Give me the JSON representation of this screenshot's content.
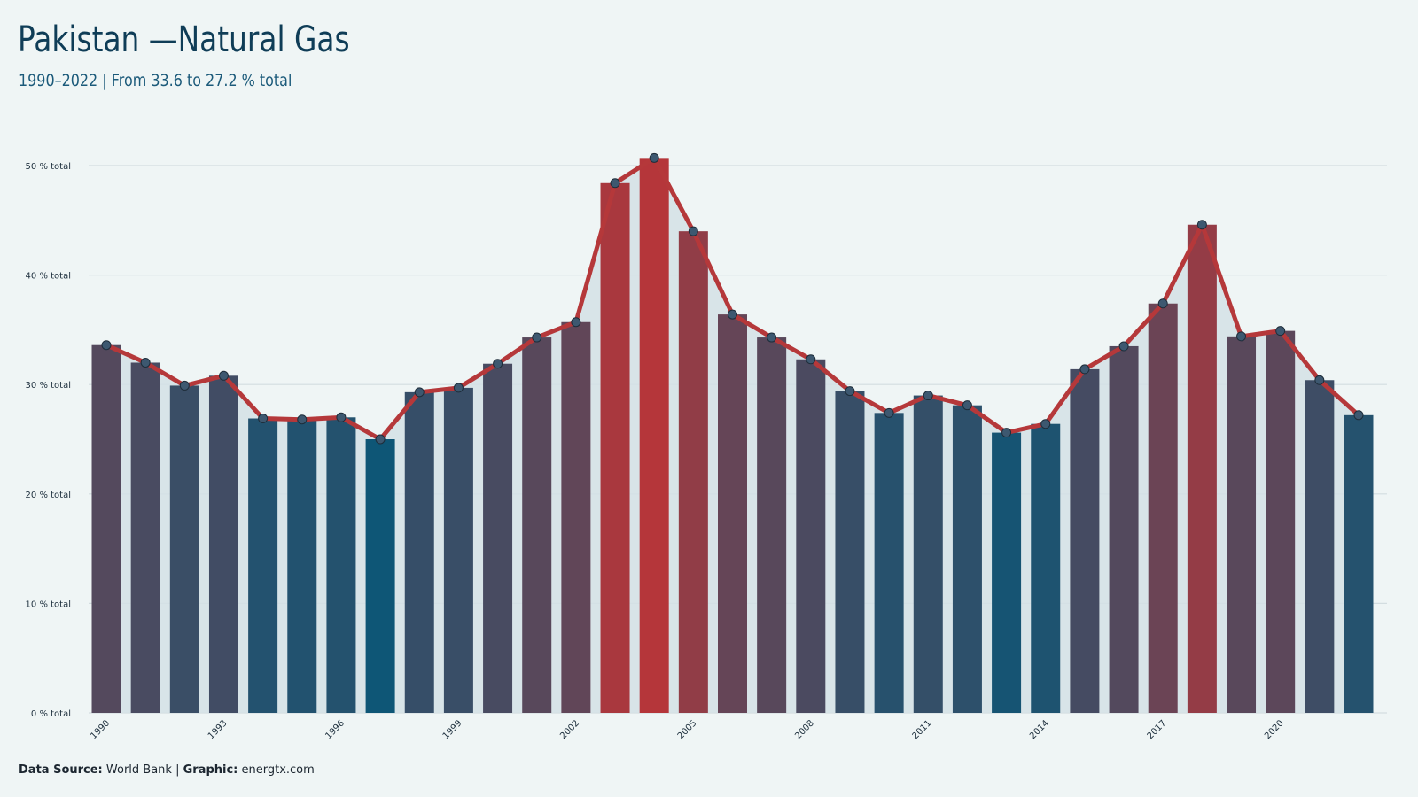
{
  "header": {
    "title": "Pakistan —Natural Gas",
    "subtitle": "1990–2022 | From 33.6 to 27.2 % total"
  },
  "footer": {
    "source_label": "Data Source:",
    "source_value": " World Bank | ",
    "graphic_label": "Graphic:",
    "graphic_value": " energtx.com"
  },
  "colors": {
    "background": "#eff5f5",
    "line": "#b5383a",
    "low_bar": "#0e5676",
    "high_bar": "#b5363a",
    "marker": "#3d5870",
    "grid": "#d3dde0",
    "area": "#d4e1e5"
  },
  "chart_data": {
    "type": "bar",
    "unit": "% total",
    "x": [
      1990,
      1991,
      1992,
      1993,
      1994,
      1995,
      1996,
      1997,
      1998,
      1999,
      2000,
      2001,
      2002,
      2003,
      2004,
      2005,
      2006,
      2007,
      2008,
      2009,
      2010,
      2011,
      2012,
      2013,
      2014,
      2015,
      2016,
      2017,
      2018,
      2019,
      2020,
      2021,
      2022
    ],
    "values": [
      33.6,
      32.0,
      29.9,
      30.8,
      26.9,
      26.8,
      27.0,
      25.0,
      29.3,
      29.7,
      31.9,
      34.3,
      35.7,
      48.4,
      50.7,
      44.0,
      36.4,
      34.3,
      32.3,
      29.4,
      27.4,
      29.0,
      28.1,
      25.6,
      26.4,
      31.4,
      33.5,
      37.4,
      44.6,
      34.4,
      34.9,
      30.4,
      27.2
    ],
    "x_tick_labels": [
      "1990",
      "1993",
      "1996",
      "1999",
      "2002",
      "2005",
      "2008",
      "2011",
      "2014",
      "2017",
      "2020"
    ],
    "y_ticks": [
      0,
      10,
      20,
      30,
      40,
      50
    ],
    "y_tick_labels": [
      "0 % total",
      "10 % total",
      "20 % total",
      "30 % total",
      "40 % total",
      "50 % total"
    ],
    "ylim": [
      0,
      52
    ],
    "grid": true,
    "legend": "none",
    "overlay": "line with circle markers over bars, shaded area under line"
  }
}
